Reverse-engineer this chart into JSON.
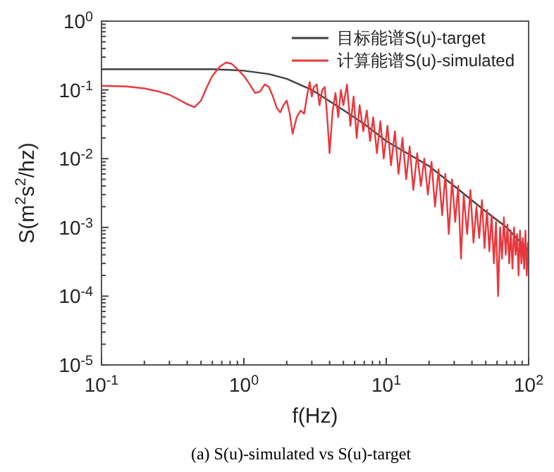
{
  "chart_data": {
    "type": "line",
    "xlabel": "f(Hz)",
    "ylabel": "S(m$^{2}$s$^{2}$/hz)",
    "annotations": [
      "(a) S(u)-simulated vs S(u)-target"
    ],
    "log": "xy",
    "legend": "top right",
    "marker": "none",
    "line_style": "solid",
    "xlim": [
      0.1,
      100
    ],
    "ylim": [
      1e-05,
      1
    ],
    "xticks": [
      {
        "value": 0.1,
        "label": "10$^{-1}$"
      },
      {
        "value": 1,
        "label": "10$^{0}$"
      },
      {
        "value": 10,
        "label": "10$^{1}$"
      },
      {
        "value": 100,
        "label": "10$^{2}$"
      }
    ],
    "yticks": [
      {
        "value": 1e-05,
        "label": "10$^{-5}$"
      },
      {
        "value": 0.0001,
        "label": "10$^{-4}$"
      },
      {
        "value": 0.001,
        "label": "10$^{-3}$"
      },
      {
        "value": 0.01,
        "label": "10$^{-2}$"
      },
      {
        "value": 0.1,
        "label": "10$^{-1}$"
      },
      {
        "value": 1,
        "label": "10$^{0}$"
      }
    ],
    "series": [
      {
        "name": "目标能谱S(u)-target",
        "color": "#404040",
        "x": [
          0.1,
          0.2,
          0.4,
          0.6,
          0.8,
          1.0,
          1.5,
          2,
          3,
          5,
          7,
          10,
          20,
          30,
          50,
          70,
          100
        ],
        "values": [
          0.2,
          0.2,
          0.2,
          0.2,
          0.195,
          0.19,
          0.17,
          0.145,
          0.1,
          0.051,
          0.032,
          0.018,
          0.0078,
          0.004,
          0.0017,
          0.001,
          0.00046
        ]
      },
      {
        "name": "计算能谱S(u)-simulated",
        "color": "#e8383d",
        "x": [
          0.1,
          0.15,
          0.2,
          0.25,
          0.3,
          0.35,
          0.4,
          0.45,
          0.5,
          0.55,
          0.6,
          0.68,
          0.75,
          0.82,
          0.9,
          1.0,
          1.1,
          1.2,
          1.3,
          1.4,
          1.5,
          1.6,
          1.7,
          1.8,
          1.9,
          2.0,
          2.1,
          2.2,
          2.35,
          2.5,
          2.65,
          2.8,
          2.9,
          3.0,
          3.1,
          3.25,
          3.4,
          3.55,
          3.7,
          3.85,
          4.0,
          4.2,
          4.4,
          4.6,
          4.8,
          5.0,
          5.3,
          5.6,
          5.9,
          6.2,
          6.5,
          6.9,
          7.3,
          7.7,
          8.1,
          8.6,
          9.1,
          9.6,
          10.2,
          10.8,
          11.5,
          12.2,
          13,
          13.8,
          14.6,
          15.5,
          16.5,
          17.5,
          18.5,
          19.6,
          20.8,
          22,
          23.3,
          24.7,
          26,
          27.5,
          29,
          30.5,
          32,
          33.5,
          35,
          37,
          39,
          41,
          43,
          45,
          47,
          49,
          51,
          53,
          55,
          57,
          59,
          61,
          63,
          65,
          67,
          69,
          71,
          73,
          75,
          77,
          79,
          81,
          83,
          85,
          87,
          89,
          91,
          93,
          95,
          97,
          99,
          100
        ],
        "values": [
          0.115,
          0.112,
          0.105,
          0.095,
          0.085,
          0.072,
          0.062,
          0.056,
          0.07,
          0.11,
          0.16,
          0.22,
          0.25,
          0.24,
          0.2,
          0.16,
          0.12,
          0.09,
          0.095,
          0.12,
          0.11,
          0.08,
          0.055,
          0.047,
          0.06,
          0.07,
          0.045,
          0.023,
          0.04,
          0.05,
          0.045,
          0.09,
          0.13,
          0.08,
          0.11,
          0.12,
          0.06,
          0.1,
          0.11,
          0.04,
          0.012,
          0.05,
          0.09,
          0.04,
          0.1,
          0.06,
          0.12,
          0.03,
          0.08,
          0.02,
          0.06,
          0.025,
          0.05,
          0.018,
          0.04,
          0.012,
          0.035,
          0.01,
          0.03,
          0.008,
          0.025,
          0.006,
          0.02,
          0.005,
          0.015,
          0.0035,
          0.012,
          0.004,
          0.01,
          0.003,
          0.009,
          0.002,
          0.007,
          0.0015,
          0.006,
          0.0008,
          0.005,
          0.0012,
          0.004,
          0.00035,
          0.003,
          0.0008,
          0.0035,
          0.0006,
          0.002,
          0.0007,
          0.0025,
          0.0005,
          0.0018,
          0.00045,
          0.0015,
          0.0003,
          0.0012,
          0.0001,
          0.001,
          0.00035,
          0.0014,
          0.0004,
          0.0011,
          0.0003,
          0.0009,
          0.00025,
          0.001,
          0.0004,
          0.0008,
          0.0002,
          0.0009,
          0.0003,
          0.0007,
          0.00025,
          0.0009,
          0.0002,
          0.0006,
          0.0003
        ]
      }
    ]
  }
}
